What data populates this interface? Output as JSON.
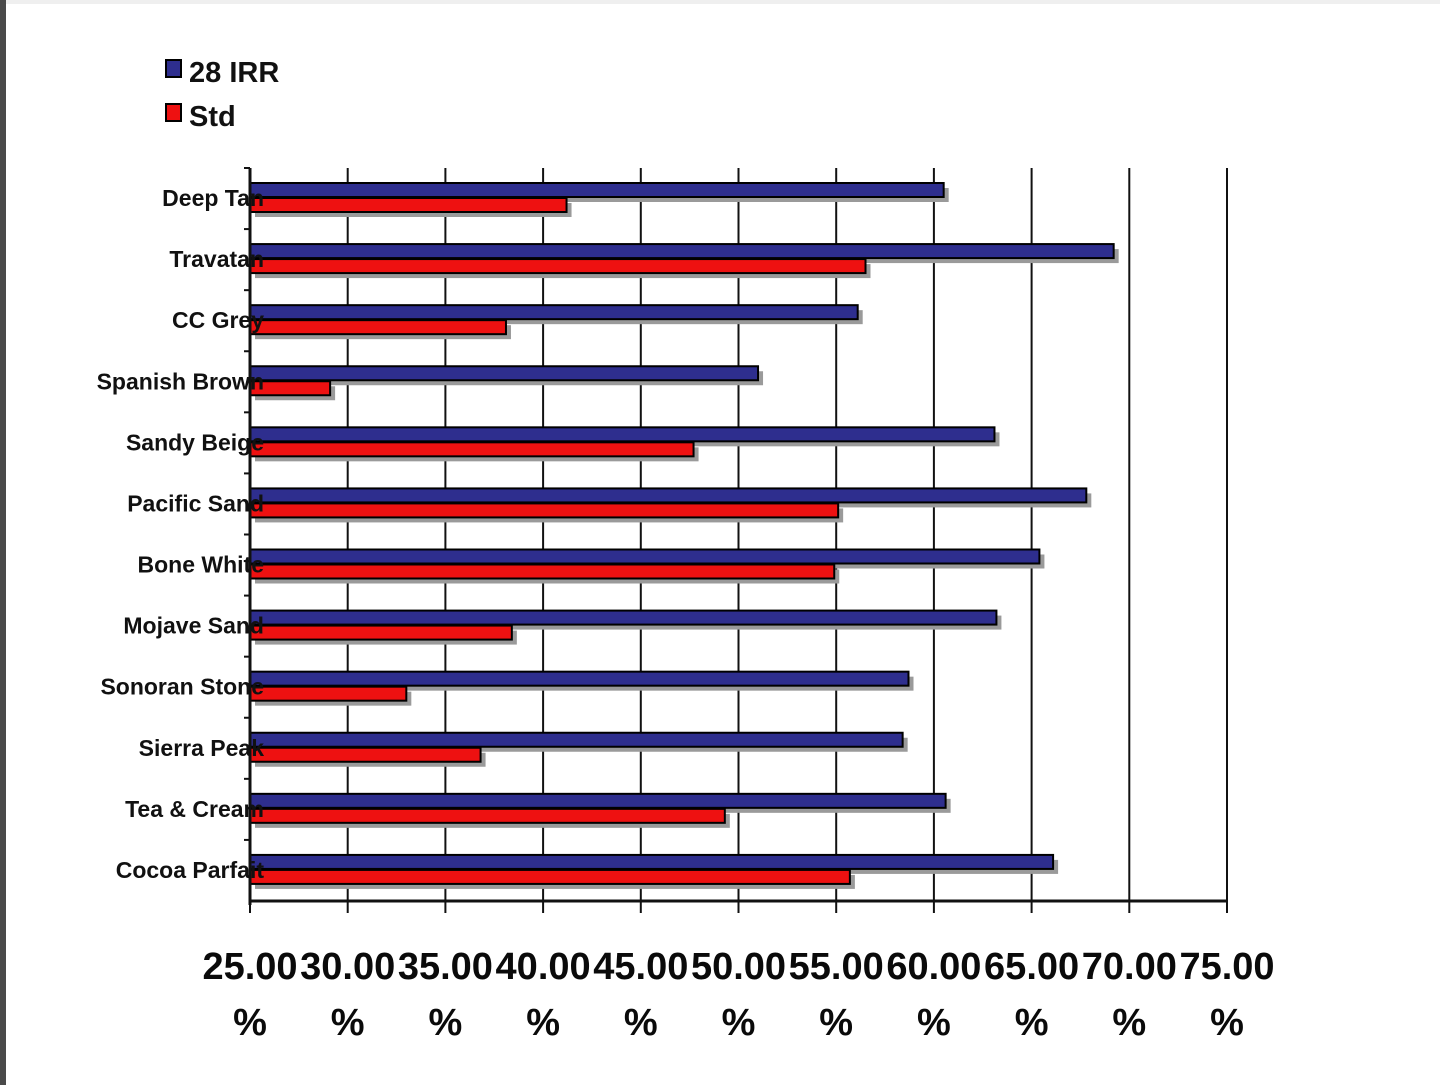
{
  "chart_data": {
    "type": "bar",
    "orientation": "horizontal",
    "categories": [
      "Deep Tan",
      "Travatan",
      "CC Grey",
      "Spanish Brown",
      "Sandy Beige",
      "Pacific Sand",
      "Bone White",
      "Mojave Sand",
      "Sonoran Stone",
      "Sierra Peak",
      "Tea & Cream",
      "Cocoa Parfait"
    ],
    "series": [
      {
        "name": "28 IRR",
        "color": "#2e2e8e",
        "values": [
          60.5,
          69.2,
          56.1,
          51.0,
          63.1,
          67.8,
          65.4,
          63.2,
          58.7,
          58.4,
          60.6,
          66.1
        ]
      },
      {
        "name": "Std",
        "color": "#ee1111",
        "values": [
          41.2,
          56.5,
          38.1,
          29.1,
          47.7,
          55.1,
          54.9,
          38.4,
          33.0,
          36.8,
          49.3,
          55.7
        ]
      }
    ],
    "xlim": [
      25,
      75
    ],
    "x_ticks": [
      25,
      30,
      35,
      40,
      45,
      50,
      55,
      60,
      65,
      70,
      75
    ],
    "x_tick_labels": [
      "25.00 %",
      "30.00 %",
      "35.00 %",
      "40.00 %",
      "45.00 %",
      "50.00 %",
      "55.00 %",
      "60.00 %",
      "65.00 %",
      "70.00 %",
      "75.00 %"
    ],
    "grid": "vertical",
    "legend": {
      "placement": "top-left",
      "entries": [
        "28 IRR",
        "Std"
      ]
    }
  }
}
